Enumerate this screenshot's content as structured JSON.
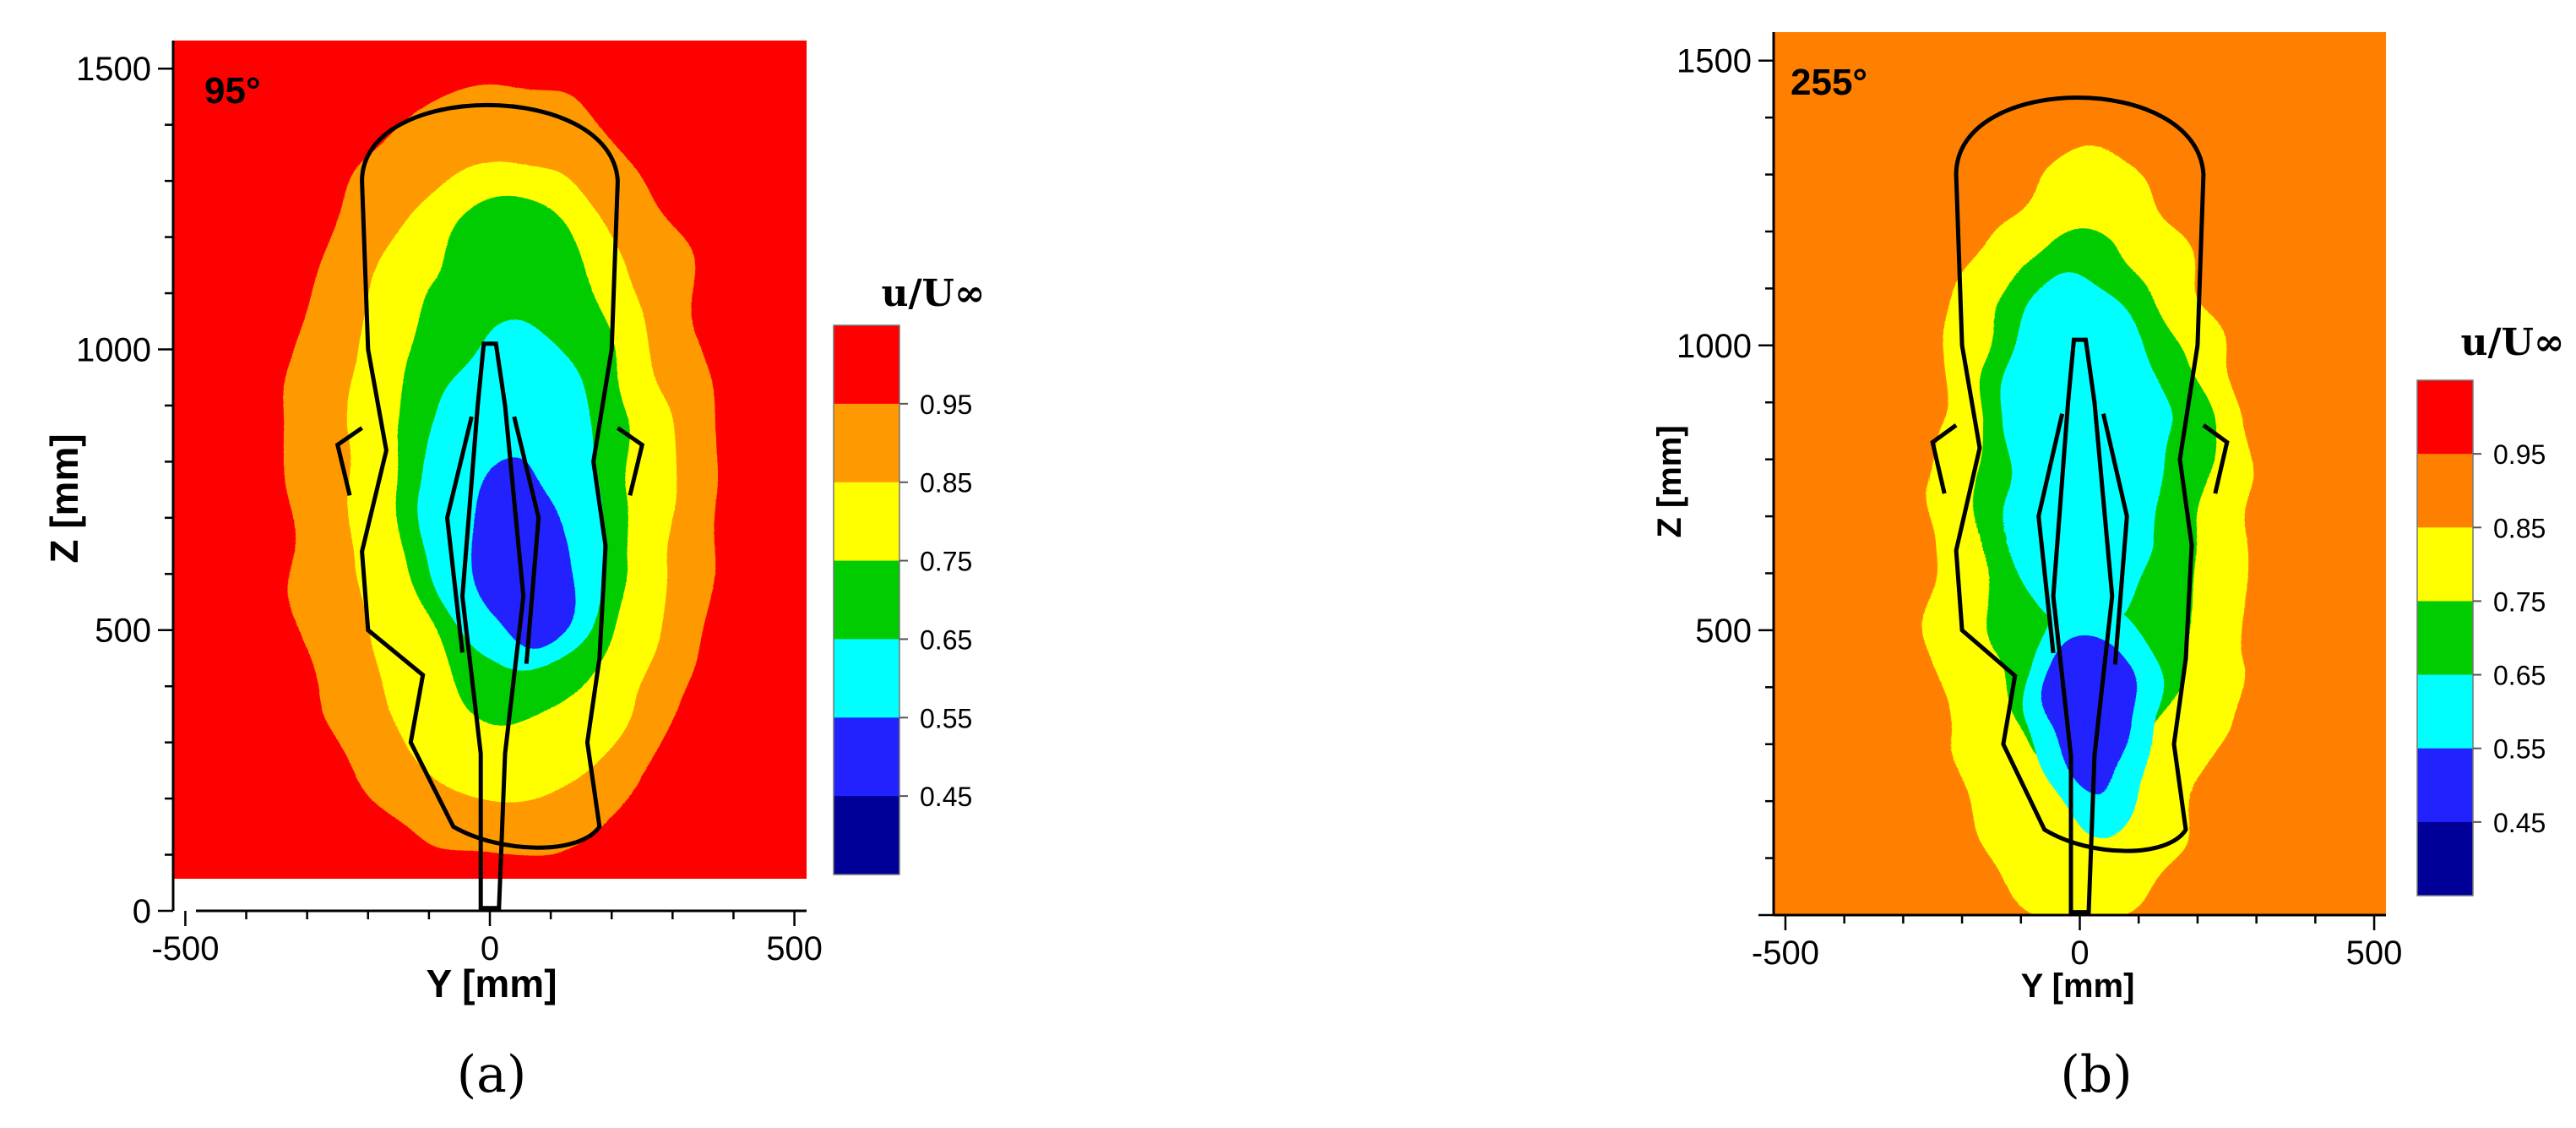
{
  "chart_data": [
    {
      "type": "heatmap",
      "panel_label": "(a)",
      "annotation": "95°",
      "xlabel": "Y [mm]",
      "ylabel": "Z [mm]",
      "xlim": [
        -520,
        520
      ],
      "ylim": [
        0,
        1550
      ],
      "xticks": [
        "-500",
        "0",
        "500"
      ],
      "yticks": [
        "0",
        "500",
        "1000",
        "1500"
      ],
      "colorbar": {
        "title": "u/U∞",
        "levels": [
          "0.95",
          "0.85",
          "0.75",
          "0.65",
          "0.55",
          "0.45"
        ],
        "colors": [
          "#ff0000",
          "#ff9900",
          "#ffff00",
          "#00cc00",
          "#00ffff",
          "#2222ff",
          "#000099"
        ]
      },
      "background_level": "#ff0000",
      "contours": [
        {
          "color": "#ff9900",
          "center": [
            20,
            780
          ],
          "radius": [
            360,
            700
          ]
        },
        {
          "color": "#ffff00",
          "center": [
            30,
            760
          ],
          "radius": [
            270,
            580
          ]
        },
        {
          "color": "#00cc00",
          "center": [
            40,
            800
          ],
          "radius": [
            190,
            470
          ]
        },
        {
          "color": "#00ffff",
          "center": [
            40,
            720
          ],
          "radius": [
            150,
            310
          ]
        },
        {
          "color": "#2222ff",
          "center": [
            55,
            630
          ],
          "radius": [
            80,
            180
          ]
        }
      ]
    },
    {
      "type": "heatmap",
      "panel_label": "(b)",
      "annotation": "255°",
      "xlabel": "Y [mm]",
      "ylabel": "Z [mm]",
      "xlim": [
        -520,
        520
      ],
      "ylim": [
        0,
        1550
      ],
      "xticks": [
        "-500",
        "0",
        "500"
      ],
      "yticks": [
        "500",
        "1000",
        "1500"
      ],
      "colorbar": {
        "title": "u/U∞",
        "levels": [
          "0.95",
          "0.85",
          "0.75",
          "0.65",
          "0.55",
          "0.45"
        ],
        "colors": [
          "#ff0000",
          "#ff8000",
          "#ffff00",
          "#00cc00",
          "#00ffff",
          "#2222ff",
          "#000099"
        ]
      },
      "background_level": "#ff8000",
      "contours": [
        {
          "color": "#ffff00",
          "center": [
            10,
            650
          ],
          "radius": [
            270,
            680
          ]
        },
        {
          "color": "#00cc00",
          "center": [
            10,
            720
          ],
          "radius": [
            200,
            480
          ]
        },
        {
          "color": "#00ffff",
          "center": [
            0,
            800
          ],
          "radius": [
            140,
            320
          ]
        },
        {
          "color": "#00ffff",
          "center": [
            20,
            360
          ],
          "radius": [
            110,
            200
          ]
        },
        {
          "color": "#2222ff",
          "center": [
            20,
            360
          ],
          "radius": [
            70,
            120
          ]
        }
      ]
    }
  ]
}
